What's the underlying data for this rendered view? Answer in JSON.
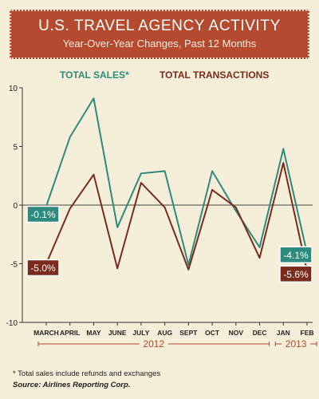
{
  "header": {
    "title": "U.S. TRAVEL AGENCY ACTIVITY",
    "subtitle": "Year-Over-Year Changes, Past 12 Months"
  },
  "colors": {
    "sales": "#2e8a7d",
    "transactions": "#7a2b1c",
    "title_bg": "#b54a2e"
  },
  "footer": {
    "note": "* Total sales include refunds and exchanges",
    "source": "Source: Airlines Reporting Corp."
  },
  "chart_data": {
    "type": "line",
    "categories": [
      "MARCH",
      "APRIL",
      "MAY",
      "JUNE",
      "JULY",
      "AUG",
      "SEPT",
      "OCT",
      "NOV",
      "DEC",
      "JAN",
      "FEB"
    ],
    "year_labels": [
      "2012",
      "2013"
    ],
    "y_ticks": [
      "10",
      "5",
      "0",
      "-5",
      "-10"
    ],
    "ylim": [
      -10,
      10
    ],
    "series": [
      {
        "name": "TOTAL SALES*",
        "values": [
          -0.1,
          5.8,
          9.1,
          -1.9,
          2.7,
          2.9,
          -5.1,
          2.9,
          -0.5,
          -3.6,
          4.8,
          -4.1
        ],
        "end_labels": [
          "-0.1%",
          "-4.1%"
        ]
      },
      {
        "name": "TOTAL TRANSACTIONS",
        "values": [
          -5.0,
          -0.3,
          2.6,
          -5.4,
          1.9,
          -0.2,
          -5.5,
          1.3,
          -0.2,
          -4.5,
          3.6,
          -5.6
        ],
        "end_labels": [
          "-5.0%",
          "-5.6%"
        ]
      }
    ]
  }
}
